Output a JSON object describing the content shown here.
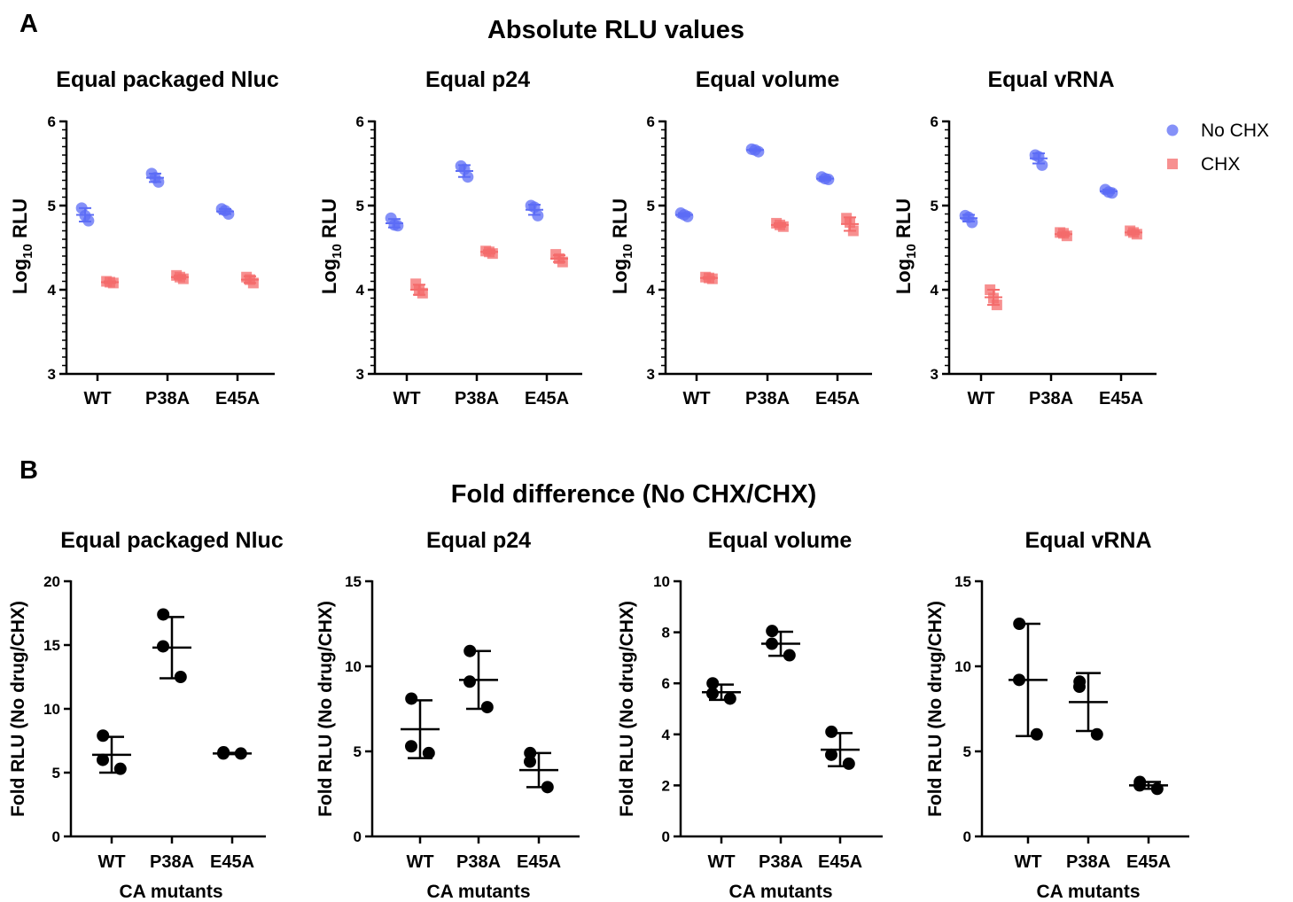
{
  "panel_a": {
    "letter": "A",
    "heading": "Absolute RLU values",
    "ylabel_main": "Log",
    "ylabel_sub": "10",
    "ylabel_tail": " RLU",
    "legend": [
      {
        "label": "No CHX",
        "color": "#5c6cf5",
        "marker": "circle"
      },
      {
        "label": "CHX",
        "color": "#f46b6b",
        "marker": "square"
      }
    ]
  },
  "panel_b": {
    "letter": "B",
    "heading": "Fold difference (No CHX/CHX)",
    "ylabel": "Fold RLU (No drug/CHX)",
    "xlabel": "CA mutants"
  },
  "chart_data": [
    {
      "type": "scatter",
      "panel": "A",
      "title": "Equal packaged Nluc",
      "categories": [
        "WT",
        "P38A",
        "E45A"
      ],
      "ylim": [
        3,
        6
      ],
      "yticks": [
        3,
        4,
        5,
        6
      ],
      "series": [
        {
          "name": "No CHX",
          "color": "#5c6cf5",
          "points": [
            [
              4.97,
              4.88,
              4.82
            ],
            [
              5.38,
              5.33,
              5.28
            ],
            [
              4.96,
              4.94,
              4.9
            ]
          ],
          "mean": [
            4.89,
            5.33,
            4.93
          ],
          "sd": [
            0.08,
            0.05,
            0.03
          ]
        },
        {
          "name": "CHX",
          "color": "#f46b6b",
          "points": [
            [
              4.1,
              4.09,
              4.08
            ],
            [
              4.17,
              4.15,
              4.13
            ],
            [
              4.15,
              4.12,
              4.08
            ]
          ],
          "mean": [
            4.09,
            4.15,
            4.12
          ],
          "sd": [
            0.01,
            0.02,
            0.04
          ]
        }
      ]
    },
    {
      "type": "scatter",
      "panel": "A",
      "title": "Equal p24",
      "categories": [
        "WT",
        "P38A",
        "E45A"
      ],
      "ylim": [
        3,
        6
      ],
      "yticks": [
        3,
        4,
        5,
        6
      ],
      "series": [
        {
          "name": "No CHX",
          "color": "#5c6cf5",
          "points": [
            [
              4.85,
              4.77,
              4.76
            ],
            [
              5.47,
              5.43,
              5.34
            ],
            [
              5.0,
              4.98,
              4.88
            ]
          ],
          "mean": [
            4.79,
            5.41,
            4.95
          ],
          "sd": [
            0.05,
            0.07,
            0.06
          ]
        },
        {
          "name": "CHX",
          "color": "#f46b6b",
          "points": [
            [
              4.07,
              3.99,
              3.96
            ],
            [
              4.46,
              4.45,
              4.43
            ],
            [
              4.42,
              4.37,
              4.33
            ]
          ],
          "mean": [
            4.0,
            4.45,
            4.37
          ],
          "sd": [
            0.06,
            0.02,
            0.04
          ]
        }
      ]
    },
    {
      "type": "scatter",
      "panel": "A",
      "title": "Equal volume",
      "categories": [
        "WT",
        "P38A",
        "E45A"
      ],
      "ylim": [
        3,
        6
      ],
      "yticks": [
        3,
        4,
        5,
        6
      ],
      "series": [
        {
          "name": "No CHX",
          "color": "#5c6cf5",
          "points": [
            [
              4.91,
              4.89,
              4.87
            ],
            [
              5.67,
              5.66,
              5.64
            ],
            [
              5.34,
              5.32,
              5.31
            ]
          ],
          "mean": [
            4.89,
            5.66,
            5.32
          ],
          "sd": [
            0.02,
            0.01,
            0.02
          ]
        },
        {
          "name": "CHX",
          "color": "#f46b6b",
          "points": [
            [
              4.15,
              4.14,
              4.13
            ],
            [
              4.79,
              4.77,
              4.75
            ],
            [
              4.85,
              4.8,
              4.7
            ]
          ],
          "mean": [
            4.14,
            4.77,
            4.78
          ],
          "sd": [
            0.01,
            0.02,
            0.08
          ]
        }
      ]
    },
    {
      "type": "scatter",
      "panel": "A",
      "title": "Equal vRNA",
      "categories": [
        "WT",
        "P38A",
        "E45A"
      ],
      "ylim": [
        3,
        6
      ],
      "yticks": [
        3,
        4,
        5,
        6
      ],
      "series": [
        {
          "name": "No CHX",
          "color": "#5c6cf5",
          "points": [
            [
              4.88,
              4.86,
              4.8
            ],
            [
              5.6,
              5.58,
              5.48
            ],
            [
              5.19,
              5.16,
              5.15
            ]
          ],
          "mean": [
            4.85,
            5.56,
            5.17
          ],
          "sd": [
            0.04,
            0.06,
            0.02
          ]
        },
        {
          "name": "CHX",
          "color": "#f46b6b",
          "points": [
            [
              4.0,
              3.9,
              3.82
            ],
            [
              4.68,
              4.67,
              4.64
            ],
            [
              4.7,
              4.68,
              4.66
            ]
          ],
          "mean": [
            3.91,
            4.66,
            4.68
          ],
          "sd": [
            0.09,
            0.02,
            0.02
          ]
        }
      ]
    },
    {
      "type": "scatter",
      "panel": "B",
      "title": "Equal packaged Nluc",
      "categories": [
        "WT",
        "P38A",
        "E45A"
      ],
      "ylim": [
        0,
        20
      ],
      "yticks": [
        0,
        5,
        10,
        15,
        20
      ],
      "series": [
        {
          "color": "#000000",
          "points": [
            [
              7.9,
              6.0,
              5.3
            ],
            [
              17.4,
              14.9,
              12.5
            ],
            [
              6.6,
              6.5,
              6.5
            ]
          ],
          "mean": [
            6.4,
            14.8,
            6.5
          ],
          "sd": [
            1.4,
            2.4,
            0.05
          ]
        }
      ]
    },
    {
      "type": "scatter",
      "panel": "B",
      "title": "Equal p24",
      "categories": [
        "WT",
        "P38A",
        "E45A"
      ],
      "ylim": [
        0,
        15
      ],
      "yticks": [
        0,
        5,
        10,
        15
      ],
      "series": [
        {
          "color": "#000000",
          "points": [
            [
              8.1,
              5.3,
              4.9
            ],
            [
              10.9,
              9.1,
              7.6
            ],
            [
              4.9,
              4.4,
              2.9
            ]
          ],
          "mean": [
            6.3,
            9.2,
            3.9
          ],
          "sd": [
            1.7,
            1.7,
            1.0
          ]
        }
      ]
    },
    {
      "type": "scatter",
      "panel": "B",
      "title": "Equal volume",
      "categories": [
        "WT",
        "P38A",
        "E45A"
      ],
      "ylim": [
        0,
        10
      ],
      "yticks": [
        0,
        2,
        4,
        6,
        8,
        10
      ],
      "series": [
        {
          "color": "#000000",
          "points": [
            [
              6.0,
              5.6,
              5.4
            ],
            [
              8.05,
              7.55,
              7.1
            ],
            [
              4.1,
              3.2,
              2.85
            ]
          ],
          "mean": [
            5.65,
            7.55,
            3.4
          ],
          "sd": [
            0.3,
            0.47,
            0.65
          ]
        }
      ]
    },
    {
      "type": "scatter",
      "panel": "B",
      "title": "Equal vRNA",
      "categories": [
        "WT",
        "P38A",
        "E45A"
      ],
      "ylim": [
        0,
        15
      ],
      "yticks": [
        0,
        5,
        10,
        15
      ],
      "series": [
        {
          "color": "#000000",
          "points": [
            [
              12.5,
              9.2,
              6.0
            ],
            [
              9.1,
              8.8,
              6.0
            ],
            [
              3.2,
              3.0,
              2.8
            ]
          ],
          "mean": [
            9.2,
            7.9,
            3.0
          ],
          "sd": [
            3.3,
            1.7,
            0.2
          ]
        }
      ]
    }
  ]
}
